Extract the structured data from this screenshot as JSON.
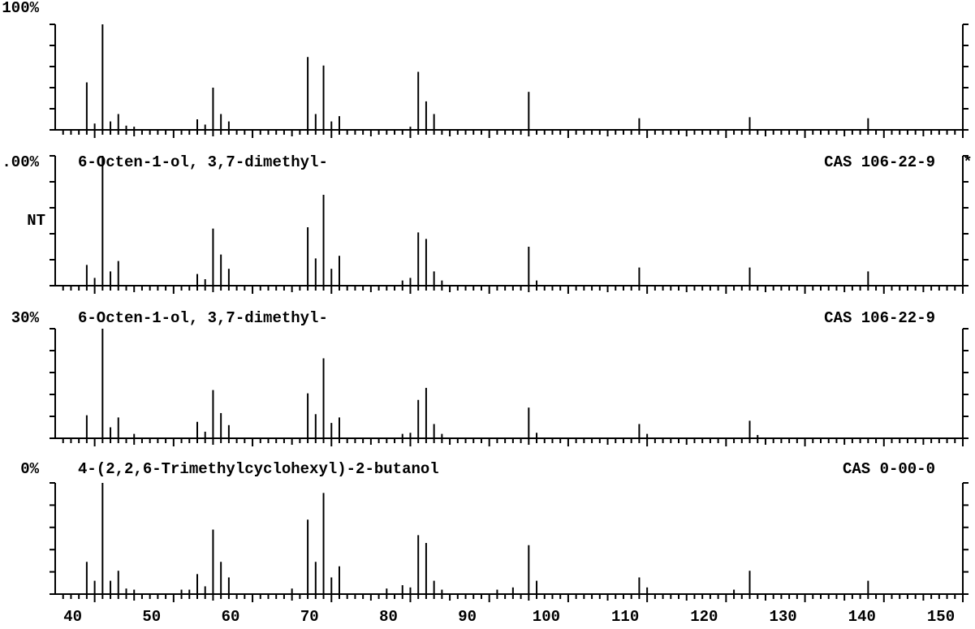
{
  "chart_data": [
    {
      "type": "bar",
      "y_top_label": "100%",
      "color": "#000000",
      "x": [
        39,
        40,
        41,
        42,
        43,
        44,
        45,
        53,
        54,
        55,
        56,
        57,
        67,
        68,
        69,
        70,
        71,
        80,
        81,
        82,
        83,
        95,
        109,
        123,
        138
      ],
      "values": [
        45,
        6,
        100,
        8,
        15,
        4,
        3,
        10,
        5,
        40,
        15,
        8,
        69,
        15,
        61,
        8,
        13,
        3,
        55,
        27,
        15,
        36,
        11,
        12,
        11
      ],
      "xlim": [
        35,
        150
      ],
      "xticks": [
        40,
        50,
        60,
        70,
        80,
        90,
        100,
        110,
        120,
        130,
        140,
        150
      ],
      "ylim": [
        0,
        100
      ],
      "yticks": [
        0,
        20,
        40,
        60,
        80,
        100
      ]
    },
    {
      "type": "bar",
      "y_top_label": ".00%",
      "y_label": "NT",
      "title": "6-Octen-1-ol, 3,7-dimethyl-",
      "subtitle": "CAS 106-22-9",
      "annotation": "*",
      "color": "#000000",
      "x": [
        39,
        40,
        41,
        42,
        43,
        53,
        54,
        55,
        56,
        57,
        67,
        68,
        69,
        70,
        71,
        79,
        80,
        81,
        82,
        83,
        84,
        95,
        96,
        109,
        123,
        138
      ],
      "values": [
        16,
        6,
        100,
        11,
        19,
        9,
        5,
        44,
        24,
        13,
        45,
        21,
        70,
        13,
        23,
        4,
        6,
        41,
        36,
        11,
        4,
        30,
        4,
        14,
        14,
        11
      ],
      "xlim": [
        35,
        150
      ],
      "xticks": [
        40,
        50,
        60,
        70,
        80,
        90,
        100,
        110,
        120,
        130,
        140,
        150
      ],
      "ylim": [
        0,
        100
      ],
      "yticks": [
        0,
        20,
        40,
        60,
        80,
        100
      ]
    },
    {
      "type": "bar",
      "y_top_label": "30%",
      "title": "6-Octen-1-ol, 3,7-dimethyl-",
      "subtitle": "CAS 106-22-9",
      "color": "#000000",
      "x": [
        39,
        41,
        42,
        43,
        45,
        53,
        54,
        55,
        56,
        57,
        67,
        68,
        69,
        70,
        71,
        79,
        80,
        81,
        82,
        83,
        84,
        95,
        96,
        109,
        110,
        123,
        124
      ],
      "values": [
        21,
        100,
        10,
        19,
        4,
        15,
        6,
        44,
        23,
        12,
        41,
        22,
        73,
        14,
        19,
        4,
        5,
        35,
        46,
        13,
        4,
        28,
        5,
        13,
        4,
        16,
        3
      ],
      "xlim": [
        35,
        150
      ],
      "xticks": [
        40,
        50,
        60,
        70,
        80,
        90,
        100,
        110,
        120,
        130,
        140,
        150
      ],
      "ylim": [
        0,
        100
      ],
      "yticks": [
        0,
        20,
        40,
        60,
        80,
        100
      ]
    },
    {
      "type": "bar",
      "y_top_label": "0%",
      "title": "4-(2,2,6-Trimethylcyclohexyl)-2-butanol",
      "subtitle": "CAS 0-00-0",
      "color": "#000000",
      "x": [
        39,
        40,
        41,
        42,
        43,
        44,
        45,
        51,
        52,
        53,
        54,
        55,
        56,
        57,
        65,
        67,
        68,
        69,
        70,
        71,
        77,
        79,
        80,
        81,
        82,
        83,
        84,
        91,
        93,
        95,
        96,
        109,
        110,
        121,
        123,
        138
      ],
      "values": [
        29,
        12,
        100,
        12,
        21,
        5,
        4,
        4,
        4,
        18,
        7,
        58,
        29,
        15,
        5,
        67,
        29,
        91,
        15,
        25,
        5,
        8,
        6,
        53,
        46,
        12,
        4,
        4,
        6,
        44,
        12,
        15,
        6,
        4,
        21,
        12
      ],
      "xlim": [
        35,
        150
      ],
      "xticks": [
        40,
        50,
        60,
        70,
        80,
        90,
        100,
        110,
        120,
        130,
        140,
        150
      ],
      "xtick_labels": true,
      "ylim": [
        0,
        100
      ],
      "yticks": [
        0,
        20,
        40,
        60,
        80,
        100
      ]
    }
  ]
}
